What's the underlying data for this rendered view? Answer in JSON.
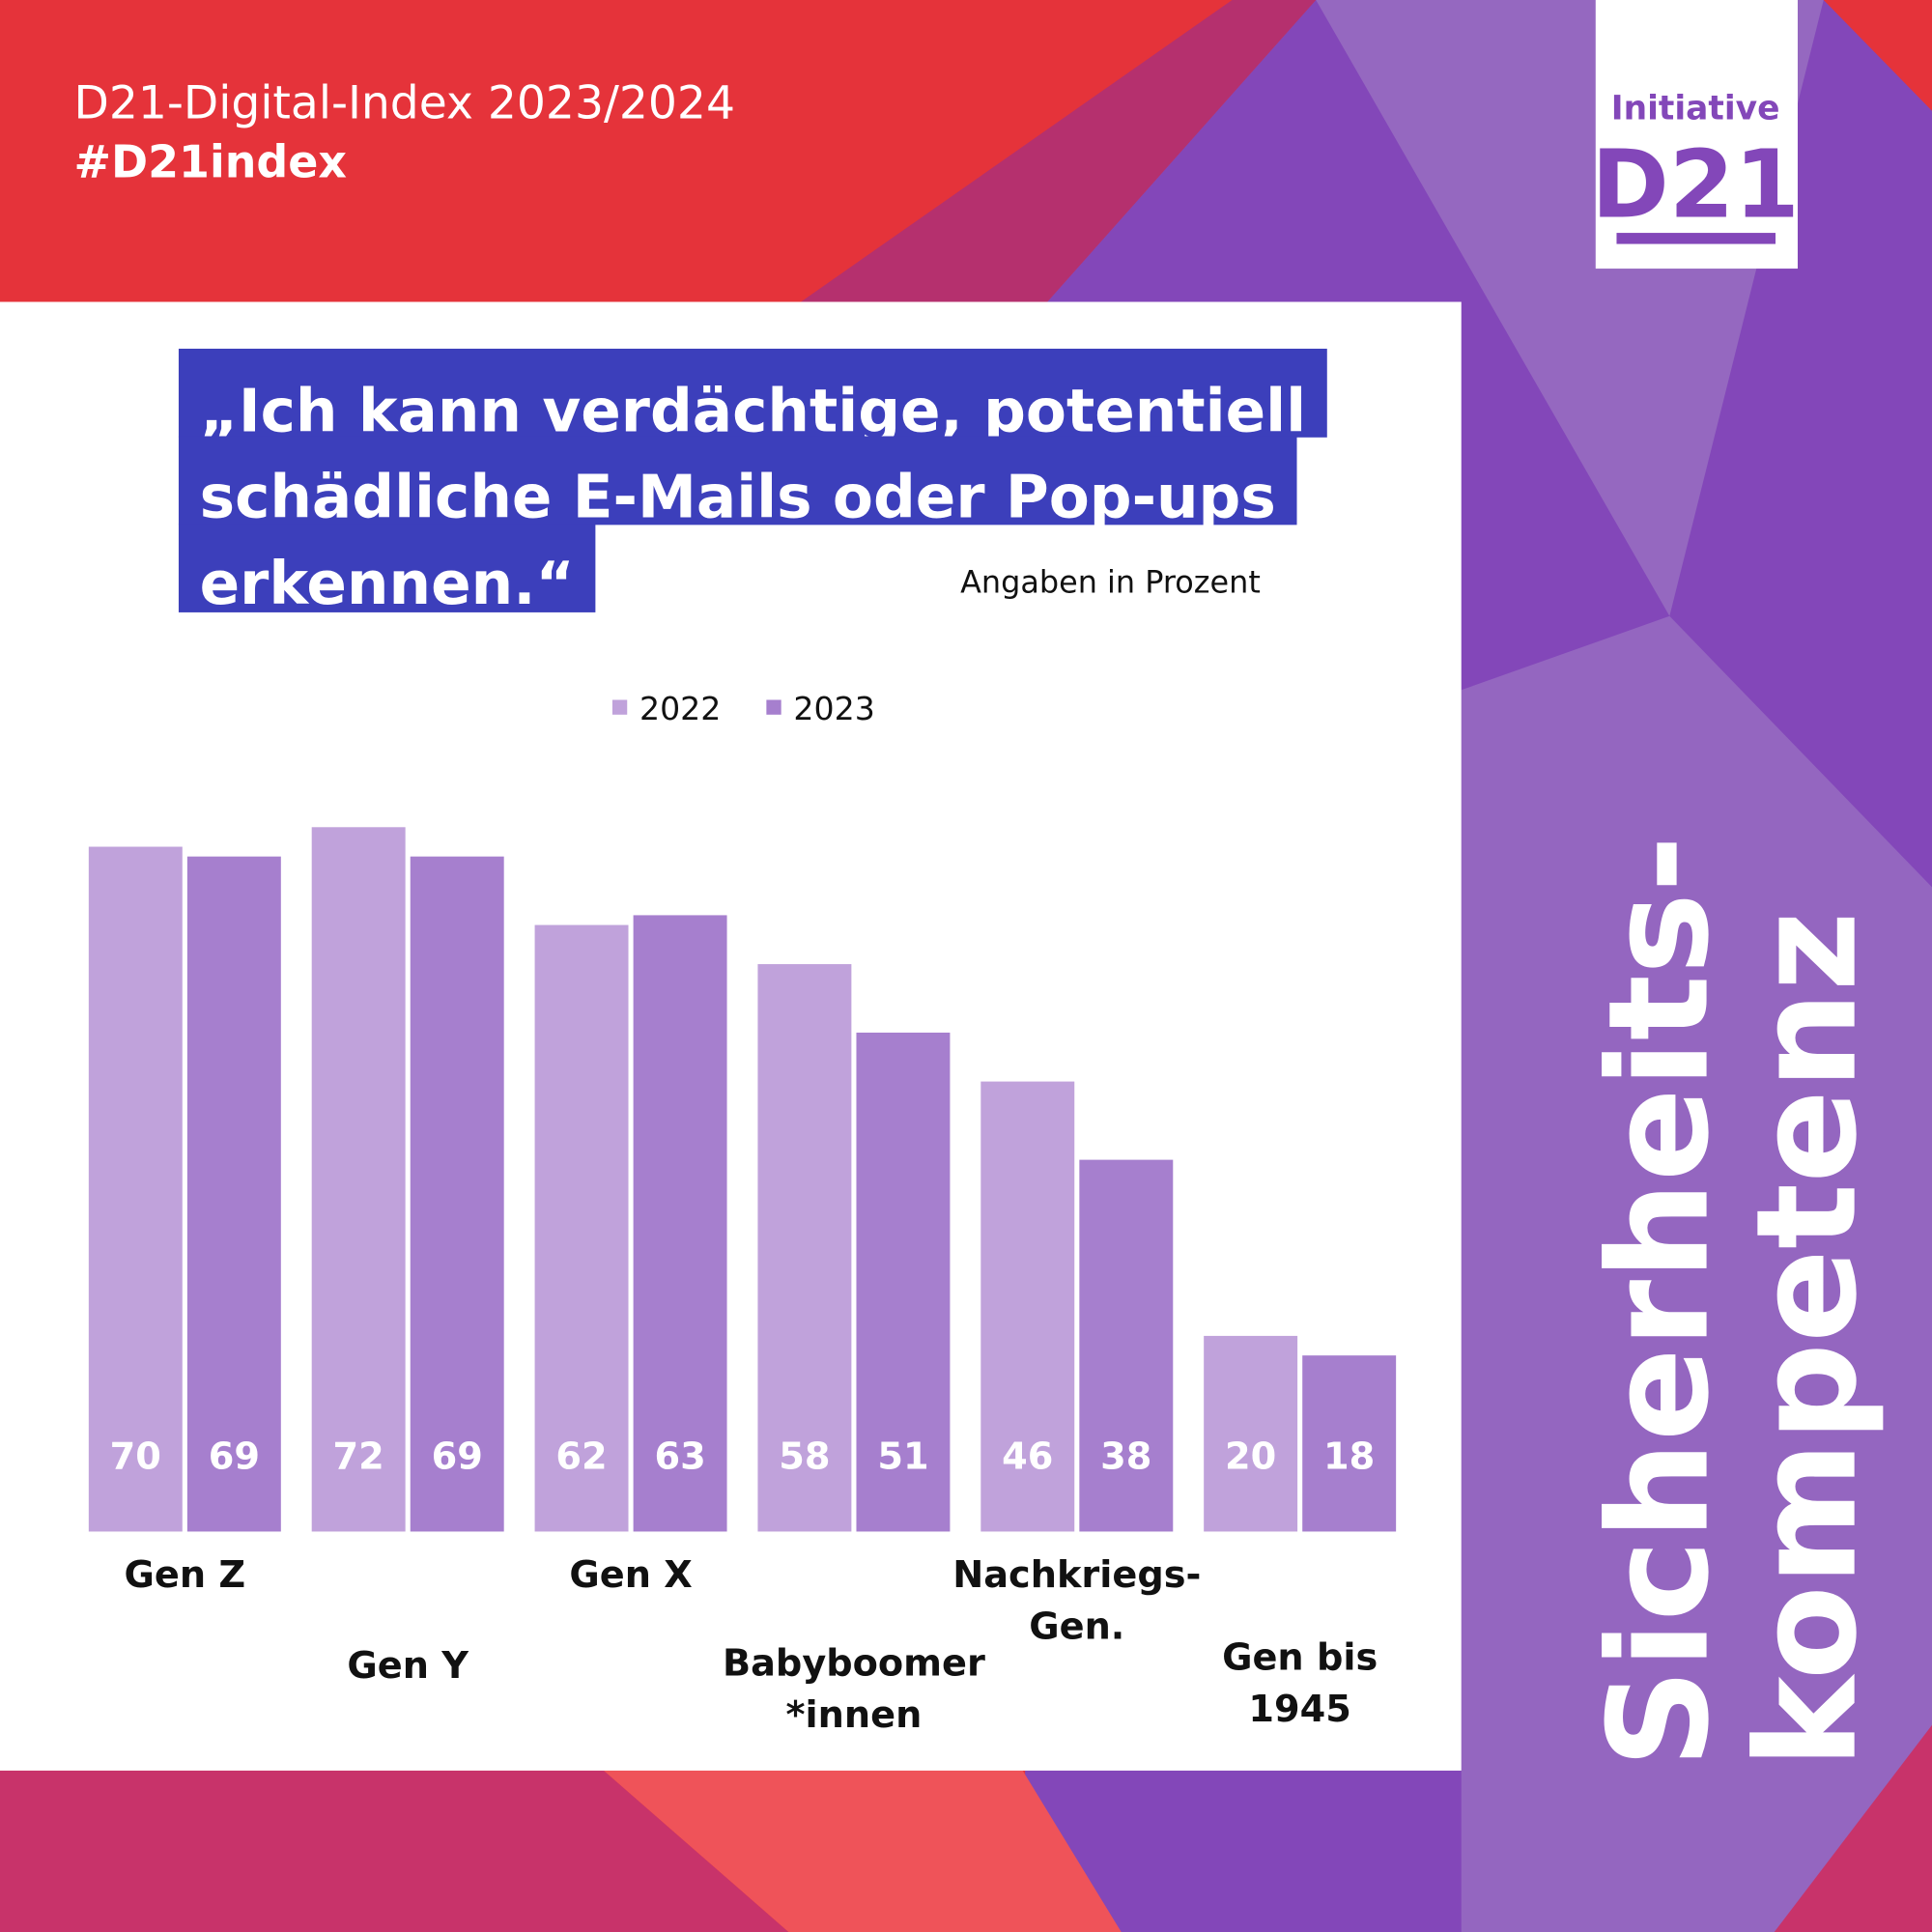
{
  "header": {
    "title": "D21-Digital-Index 2023/2024",
    "hashtag": "#D21index"
  },
  "logo": {
    "top": "Initiative",
    "main": "D21"
  },
  "side_title": [
    "Sicherheits-",
    "kompetenz"
  ],
  "chart_data": {
    "type": "bar",
    "title": [
      "„Ich kann verdächtige, potentiell",
      "schädliche E-Mails oder Pop-ups",
      "erkennen.“"
    ],
    "subtitle": "Angaben in Prozent",
    "categories": [
      "Gen Z",
      "Gen Y",
      "Gen X",
      "Babyboomer\n*innen",
      "Nachkriegs-\nGen.",
      "Gen bis\n1945"
    ],
    "series": [
      {
        "name": "2022",
        "color": "#c0a2db",
        "values": [
          70,
          72,
          62,
          58,
          46,
          20
        ]
      },
      {
        "name": "2023",
        "color": "#a67fce",
        "values": [
          69,
          69,
          63,
          51,
          38,
          18
        ]
      }
    ],
    "legend": "top"
  }
}
